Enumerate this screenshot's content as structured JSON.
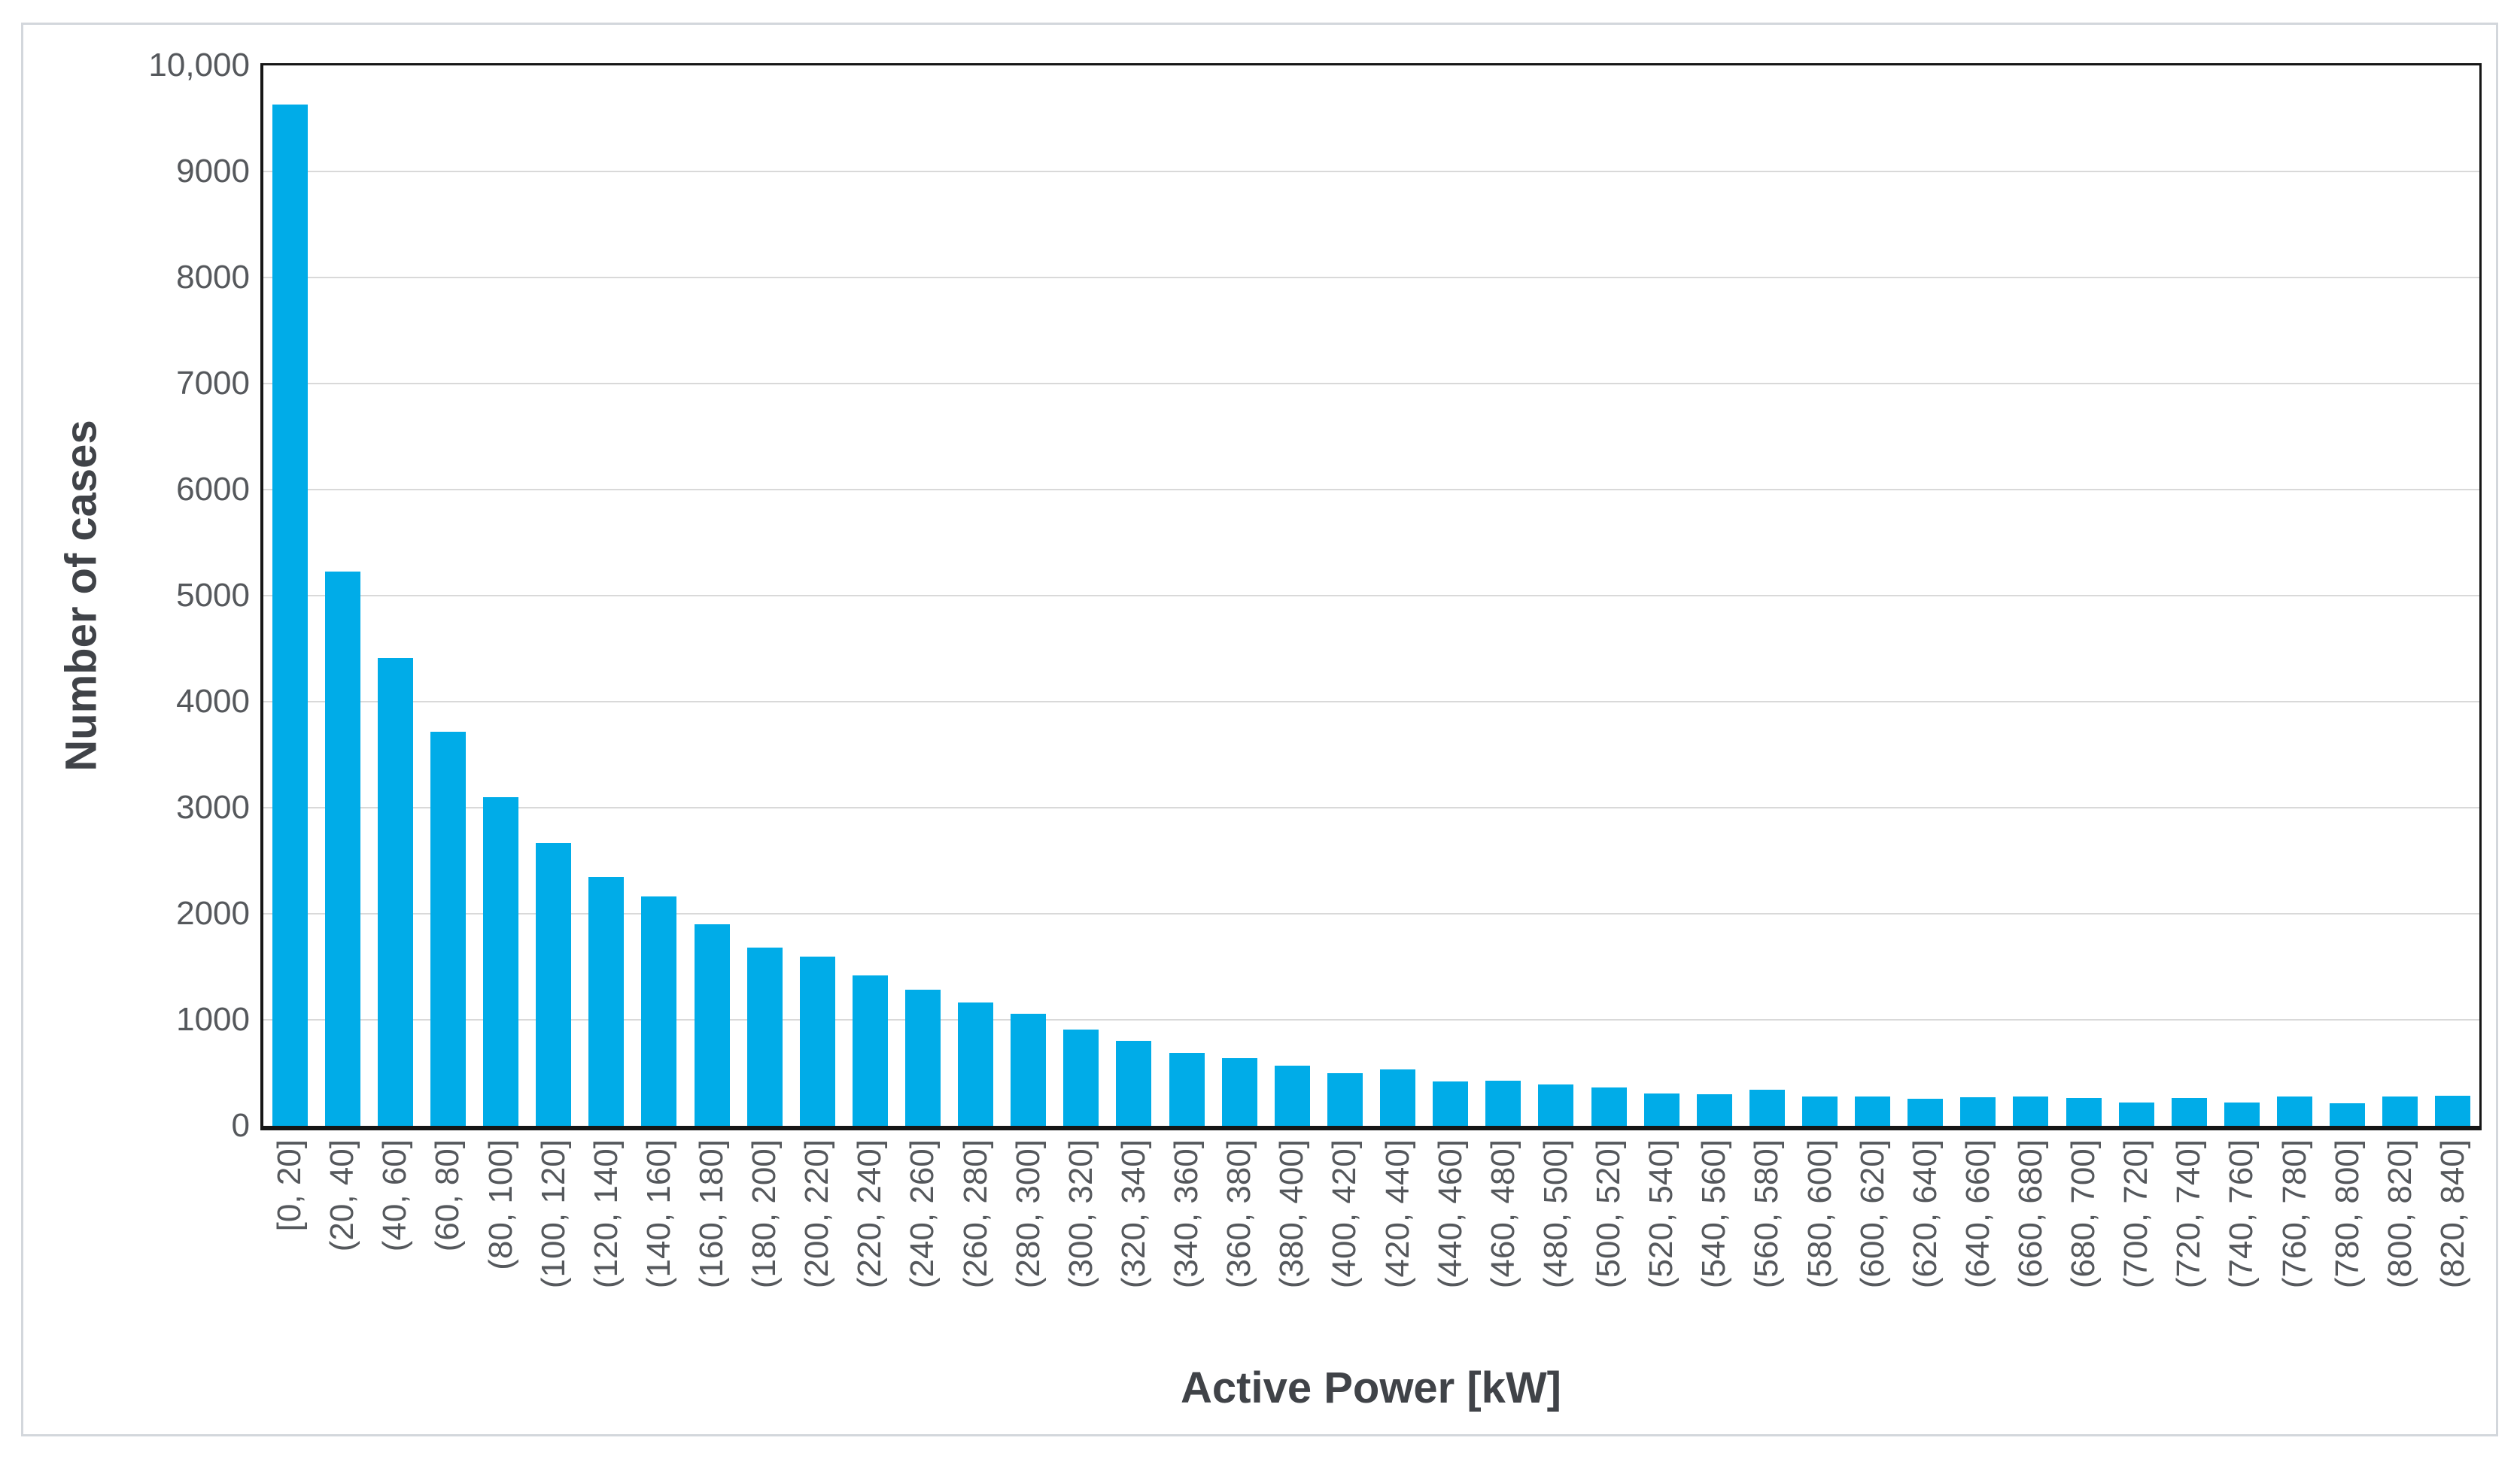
{
  "figure": {
    "background_color": "#ffffff",
    "frame_border_color": "#d3d7dc"
  },
  "chart_data": {
    "type": "bar",
    "title": "",
    "xlabel": "Active Power [kW]",
    "ylabel": "Number of cases",
    "bar_color": "#00ace8",
    "gridline_color": "#d9d9d9",
    "axis_line_color": "#161616",
    "tick_label_color": "#55585c",
    "axis_title_color": "#404348",
    "grid": true,
    "legend_position": "none",
    "ylim": [
      0,
      10000
    ],
    "ytick_step": 1000,
    "ytick_labels": [
      "0",
      "1000",
      "2000",
      "3000",
      "4000",
      "5000",
      "6000",
      "7000",
      "8000",
      "9000",
      "10,000"
    ],
    "categories": [
      "[0, 20]",
      "(20, 40]",
      "(40, 60]",
      "(60, 80]",
      "(80, 100]",
      "(100, 120]",
      "(120, 140]",
      "(140, 160]",
      "(160, 180]",
      "(180, 200]",
      "(200, 220]",
      "(220, 240]",
      "(240, 260]",
      "(260, 280]",
      "(280, 300]",
      "(300, 320]",
      "(320, 340]",
      "(340, 360]",
      "(360, 380]",
      "(380, 400]",
      "(400, 420]",
      "(420, 440]",
      "(440, 460]",
      "(460, 480]",
      "(480, 500]",
      "(500, 520]",
      "(520, 540]",
      "(540, 560]",
      "(560, 580]",
      "(580, 600]",
      "(600, 620]",
      "(620, 640]",
      "(640, 660]",
      "(660, 680]",
      "(680, 700]",
      "(700, 720]",
      "(720, 740]",
      "(740, 760]",
      "(760, 780]",
      "(780, 800]",
      "(800, 820]",
      "(820, 840]"
    ],
    "values": [
      9630,
      5230,
      4410,
      3715,
      3100,
      2670,
      2350,
      2160,
      1900,
      1680,
      1595,
      1420,
      1285,
      1160,
      1055,
      910,
      800,
      685,
      640,
      565,
      500,
      530,
      420,
      425,
      390,
      365,
      305,
      300,
      340,
      280,
      280,
      255,
      270,
      280,
      265,
      220,
      265,
      220,
      275,
      215,
      280,
      285
    ]
  }
}
